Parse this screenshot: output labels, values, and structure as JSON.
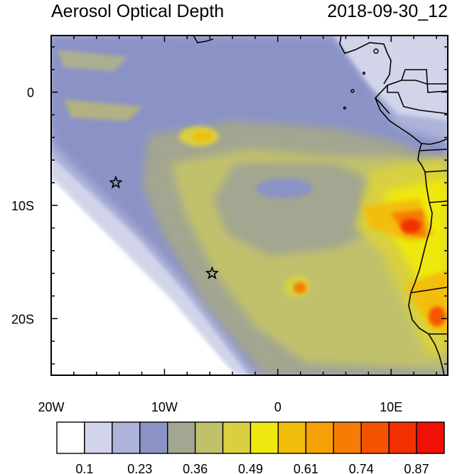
{
  "title": "Aerosol Optical Depth",
  "timestamp": "2018-09-30_12",
  "axes": {
    "x_ticks": [
      {
        "label": "20W",
        "lon": -20
      },
      {
        "label": "10W",
        "lon": -10
      },
      {
        "label": "0",
        "lon": 0
      },
      {
        "label": "10E",
        "lon": 10
      }
    ],
    "y_ticks": [
      {
        "label": "0",
        "lat": 0
      },
      {
        "label": "10S",
        "lat": -10
      },
      {
        "label": "20S",
        "lat": -20
      }
    ],
    "lon_range": [
      -20,
      15
    ],
    "lat_range": [
      -25,
      5
    ]
  },
  "markers": [
    {
      "name": "star-marker",
      "lon": -14.3,
      "lat": -8.0
    },
    {
      "name": "star-marker",
      "lon": -5.8,
      "lat": -16.0
    }
  ],
  "colorbar": {
    "colors": [
      "#ffffff",
      "#d2d5ea",
      "#aeb3da",
      "#8b93c6",
      "#a3a690",
      "#c1c16c",
      "#d8d040",
      "#eee80e",
      "#f3bd0c",
      "#f6a008",
      "#f67c06",
      "#f45402",
      "#f12f00",
      "#f20f05"
    ],
    "labels": [
      "0.1",
      "0.23",
      "0.36",
      "0.49",
      "0.61",
      "0.74",
      "0.87"
    ]
  }
}
